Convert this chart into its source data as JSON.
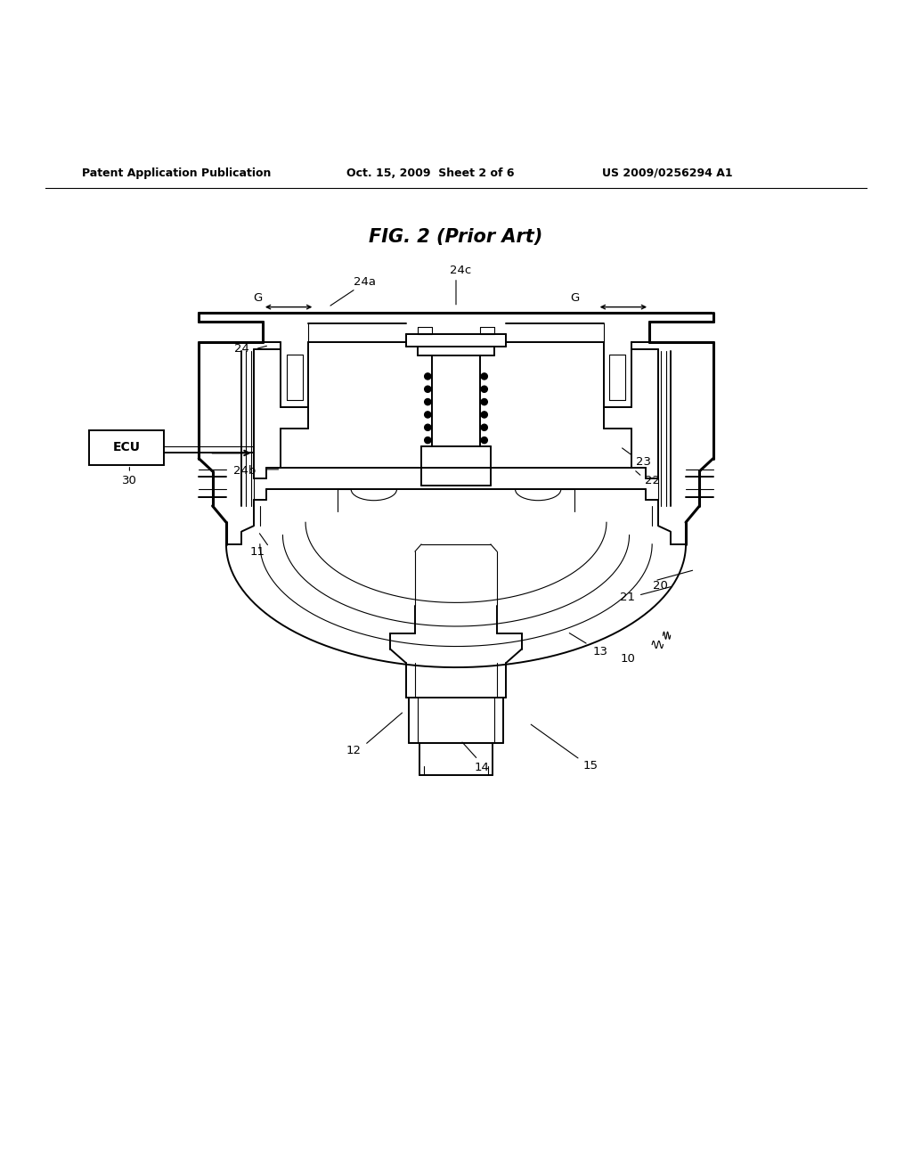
{
  "bg_color": "#ffffff",
  "text_color": "#000000",
  "header_left": "Patent Application Publication",
  "header_mid": "Oct. 15, 2009  Sheet 2 of 6",
  "header_right": "US 2009/0256294 A1",
  "figure_title": "FIG. 2 (Prior Art)"
}
